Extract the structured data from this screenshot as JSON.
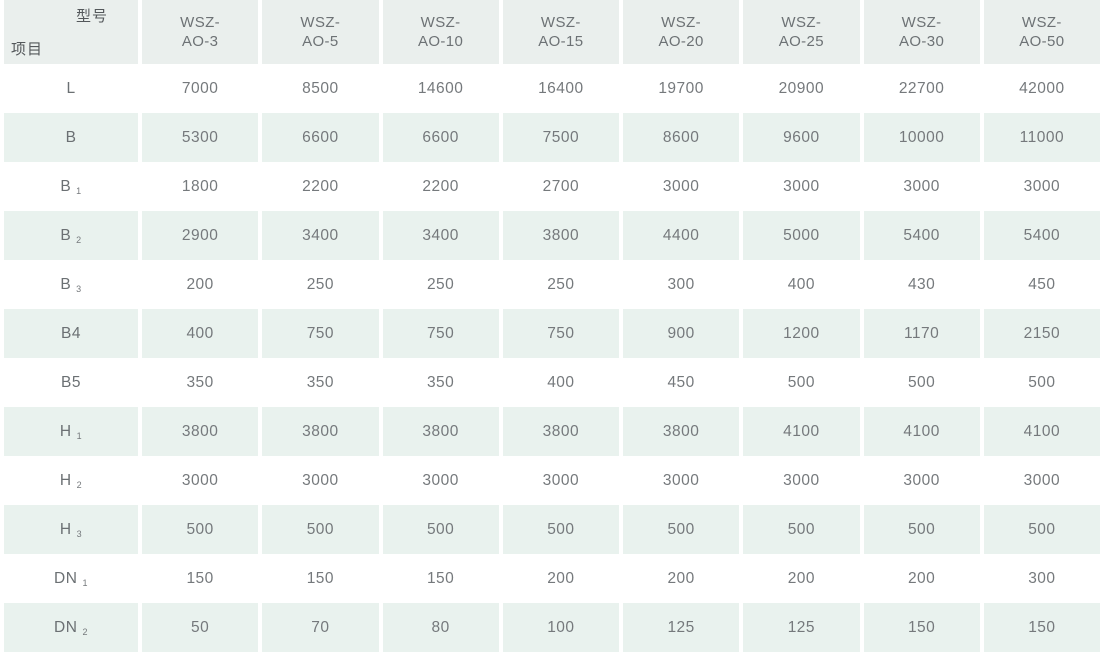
{
  "table": {
    "corner": {
      "top_right": "型号",
      "bottom_left": "项目"
    },
    "columns": [
      "WSZ-\nAO-3",
      "WSZ-\nAO-5",
      "WSZ-\nAO-10",
      "WSZ-\nAO-15",
      "WSZ-\nAO-20",
      "WSZ-\nAO-25",
      "WSZ-\nAO-30",
      "WSZ-\nAO-50"
    ],
    "rows": [
      {
        "label": "L",
        "sub": "",
        "values": [
          "7000",
          "8500",
          "14600",
          "16400",
          "19700",
          "20900",
          "22700",
          "42000"
        ]
      },
      {
        "label": "B",
        "sub": "",
        "values": [
          "5300",
          "6600",
          "6600",
          "7500",
          "8600",
          "9600",
          "10000",
          "11000"
        ]
      },
      {
        "label": "B",
        "sub": "1",
        "values": [
          "1800",
          "2200",
          "2200",
          "2700",
          "3000",
          "3000",
          "3000",
          "3000"
        ]
      },
      {
        "label": "B",
        "sub": "2",
        "values": [
          "2900",
          "3400",
          "3400",
          "3800",
          "4400",
          "5000",
          "5400",
          "5400"
        ]
      },
      {
        "label": "B",
        "sub": "3",
        "values": [
          "200",
          "250",
          "250",
          "250",
          "300",
          "400",
          "430",
          "450"
        ]
      },
      {
        "label": "B4",
        "sub": "",
        "values": [
          "400",
          "750",
          "750",
          "750",
          "900",
          "1200",
          "1170",
          "2150"
        ]
      },
      {
        "label": "B5",
        "sub": "",
        "values": [
          "350",
          "350",
          "350",
          "400",
          "450",
          "500",
          "500",
          "500"
        ]
      },
      {
        "label": "H",
        "sub": "1",
        "values": [
          "3800",
          "3800",
          "3800",
          "3800",
          "3800",
          "4100",
          "4100",
          "4100"
        ]
      },
      {
        "label": "H",
        "sub": "2",
        "values": [
          "3000",
          "3000",
          "3000",
          "3000",
          "3000",
          "3000",
          "3000",
          "3000"
        ]
      },
      {
        "label": "H",
        "sub": "3",
        "values": [
          "500",
          "500",
          "500",
          "500",
          "500",
          "500",
          "500",
          "500"
        ]
      },
      {
        "label": "DN",
        "sub": "1",
        "values": [
          "150",
          "150",
          "150",
          "200",
          "200",
          "200",
          "200",
          "300"
        ]
      },
      {
        "label": "DN",
        "sub": "2",
        "values": [
          "50",
          "70",
          "80",
          "100",
          "125",
          "125",
          "150",
          "150"
        ]
      }
    ]
  },
  "colors": {
    "row_tint": "#e9f2ee",
    "header_tint": "#eaefed",
    "value_text": "#75797c",
    "header_text": "#6d7275",
    "corner_text": "#54585b"
  }
}
